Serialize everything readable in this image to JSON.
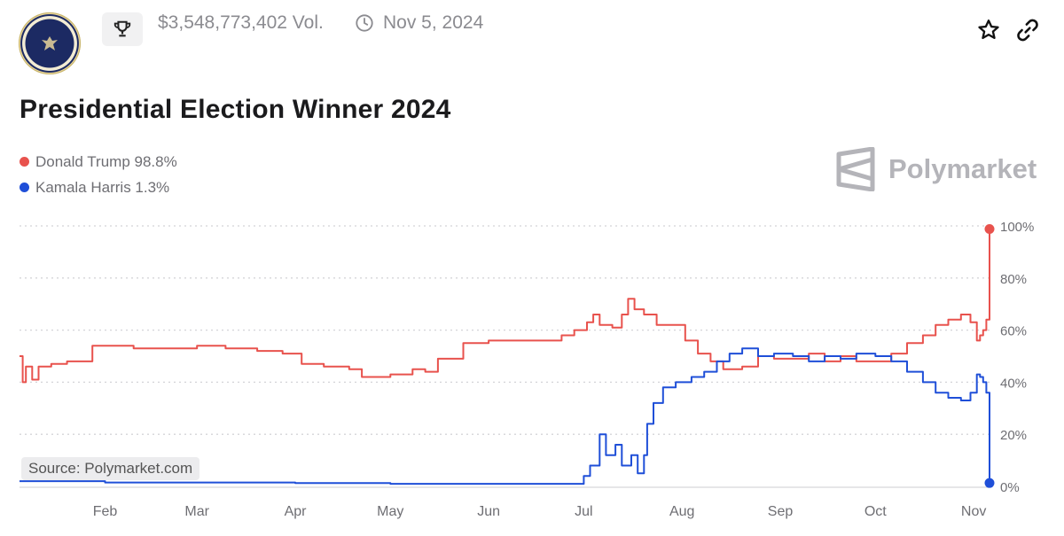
{
  "header": {
    "volume": "$3,548,773,402 Vol.",
    "date": "Nov 5, 2024",
    "icons": [
      "presidential-seal",
      "trophy-icon",
      "clock-icon",
      "star-icon",
      "link-icon"
    ]
  },
  "brand": "Polymarket",
  "source": "Source: Polymarket.com",
  "colors": {
    "trump": "#e8524d",
    "harris": "#1f4fd8",
    "grid": "#d4d4d8",
    "axis_text": "#6e6e73"
  },
  "chart_data": {
    "type": "line",
    "title": "Presidential Election Winner 2024",
    "xlabel": "",
    "ylabel": "",
    "x_start": "2024-01-05",
    "x_end": "2024-11-06",
    "x_ticks": [
      {
        "date": "2024-02-01",
        "label": "Feb"
      },
      {
        "date": "2024-03-01",
        "label": "Mar"
      },
      {
        "date": "2024-04-01",
        "label": "Apr"
      },
      {
        "date": "2024-05-01",
        "label": "May"
      },
      {
        "date": "2024-06-01",
        "label": "Jun"
      },
      {
        "date": "2024-07-01",
        "label": "Jul"
      },
      {
        "date": "2024-08-01",
        "label": "Aug"
      },
      {
        "date": "2024-09-01",
        "label": "Sep"
      },
      {
        "date": "2024-10-01",
        "label": "Oct"
      },
      {
        "date": "2024-11-01",
        "label": "Nov"
      }
    ],
    "y_ticks": [
      0,
      20,
      40,
      60,
      80,
      100
    ],
    "y_tick_labels": [
      "0%",
      "20%",
      "40%",
      "60%",
      "80%",
      "100%"
    ],
    "ylim": [
      0,
      100
    ],
    "grid": true,
    "legend_position": "top-left",
    "series": [
      {
        "name": "Donald Trump",
        "legend_label": "Donald Trump 98.8%",
        "color": "#e8524d",
        "points": [
          [
            "2024-01-05",
            50
          ],
          [
            "2024-01-06",
            40
          ],
          [
            "2024-01-07",
            46
          ],
          [
            "2024-01-09",
            41
          ],
          [
            "2024-01-11",
            46
          ],
          [
            "2024-01-15",
            47
          ],
          [
            "2024-01-20",
            48
          ],
          [
            "2024-01-25",
            48
          ],
          [
            "2024-01-28",
            54
          ],
          [
            "2024-02-03",
            54
          ],
          [
            "2024-02-10",
            53
          ],
          [
            "2024-02-20",
            53
          ],
          [
            "2024-03-01",
            54
          ],
          [
            "2024-03-10",
            53
          ],
          [
            "2024-03-20",
            52
          ],
          [
            "2024-03-28",
            51
          ],
          [
            "2024-04-03",
            47
          ],
          [
            "2024-04-10",
            46
          ],
          [
            "2024-04-18",
            45
          ],
          [
            "2024-04-22",
            42
          ],
          [
            "2024-05-01",
            43
          ],
          [
            "2024-05-08",
            45
          ],
          [
            "2024-05-12",
            44
          ],
          [
            "2024-05-16",
            49
          ],
          [
            "2024-05-24",
            55
          ],
          [
            "2024-06-01",
            56
          ],
          [
            "2024-06-15",
            56
          ],
          [
            "2024-06-24",
            58
          ],
          [
            "2024-06-28",
            60
          ],
          [
            "2024-07-02",
            63
          ],
          [
            "2024-07-04",
            66
          ],
          [
            "2024-07-06",
            62
          ],
          [
            "2024-07-10",
            61
          ],
          [
            "2024-07-13",
            66
          ],
          [
            "2024-07-15",
            72
          ],
          [
            "2024-07-17",
            68
          ],
          [
            "2024-07-20",
            66
          ],
          [
            "2024-07-24",
            62
          ],
          [
            "2024-07-28",
            62
          ],
          [
            "2024-08-02",
            56
          ],
          [
            "2024-08-06",
            51
          ],
          [
            "2024-08-10",
            48
          ],
          [
            "2024-08-14",
            45
          ],
          [
            "2024-08-20",
            46
          ],
          [
            "2024-08-25",
            50
          ],
          [
            "2024-08-30",
            49
          ],
          [
            "2024-09-05",
            49
          ],
          [
            "2024-09-10",
            51
          ],
          [
            "2024-09-15",
            48
          ],
          [
            "2024-09-20",
            50
          ],
          [
            "2024-09-25",
            48
          ],
          [
            "2024-10-01",
            48
          ],
          [
            "2024-10-06",
            51
          ],
          [
            "2024-10-11",
            55
          ],
          [
            "2024-10-16",
            58
          ],
          [
            "2024-10-20",
            62
          ],
          [
            "2024-10-24",
            64
          ],
          [
            "2024-10-28",
            66
          ],
          [
            "2024-10-31",
            63
          ],
          [
            "2024-11-02",
            56
          ],
          [
            "2024-11-03",
            58
          ],
          [
            "2024-11-04",
            60
          ],
          [
            "2024-11-05",
            64
          ],
          [
            "2024-11-06",
            98.8
          ]
        ]
      },
      {
        "name": "Kamala Harris",
        "legend_label": "Kamala Harris 1.3%",
        "color": "#1f4fd8",
        "points": [
          [
            "2024-01-05",
            2
          ],
          [
            "2024-02-01",
            1.5
          ],
          [
            "2024-03-01",
            1.5
          ],
          [
            "2024-04-01",
            1.3
          ],
          [
            "2024-05-01",
            1
          ],
          [
            "2024-06-01",
            1
          ],
          [
            "2024-06-28",
            1
          ],
          [
            "2024-07-01",
            4
          ],
          [
            "2024-07-03",
            8
          ],
          [
            "2024-07-06",
            20
          ],
          [
            "2024-07-08",
            12
          ],
          [
            "2024-07-11",
            16
          ],
          [
            "2024-07-13",
            8
          ],
          [
            "2024-07-16",
            12
          ],
          [
            "2024-07-18",
            5
          ],
          [
            "2024-07-20",
            12
          ],
          [
            "2024-07-21",
            24
          ],
          [
            "2024-07-23",
            32
          ],
          [
            "2024-07-26",
            38
          ],
          [
            "2024-07-30",
            40
          ],
          [
            "2024-08-04",
            42
          ],
          [
            "2024-08-08",
            44
          ],
          [
            "2024-08-12",
            48
          ],
          [
            "2024-08-16",
            51
          ],
          [
            "2024-08-20",
            53
          ],
          [
            "2024-08-25",
            50
          ],
          [
            "2024-08-30",
            51
          ],
          [
            "2024-09-05",
            50
          ],
          [
            "2024-09-10",
            48
          ],
          [
            "2024-09-15",
            50
          ],
          [
            "2024-09-20",
            49
          ],
          [
            "2024-09-25",
            51
          ],
          [
            "2024-10-01",
            50
          ],
          [
            "2024-10-06",
            48
          ],
          [
            "2024-10-11",
            44
          ],
          [
            "2024-10-16",
            40
          ],
          [
            "2024-10-20",
            36
          ],
          [
            "2024-10-24",
            34
          ],
          [
            "2024-10-28",
            33
          ],
          [
            "2024-10-31",
            36
          ],
          [
            "2024-11-02",
            43
          ],
          [
            "2024-11-03",
            42
          ],
          [
            "2024-11-04",
            40
          ],
          [
            "2024-11-05",
            36
          ],
          [
            "2024-11-06",
            1.3
          ]
        ]
      }
    ]
  }
}
